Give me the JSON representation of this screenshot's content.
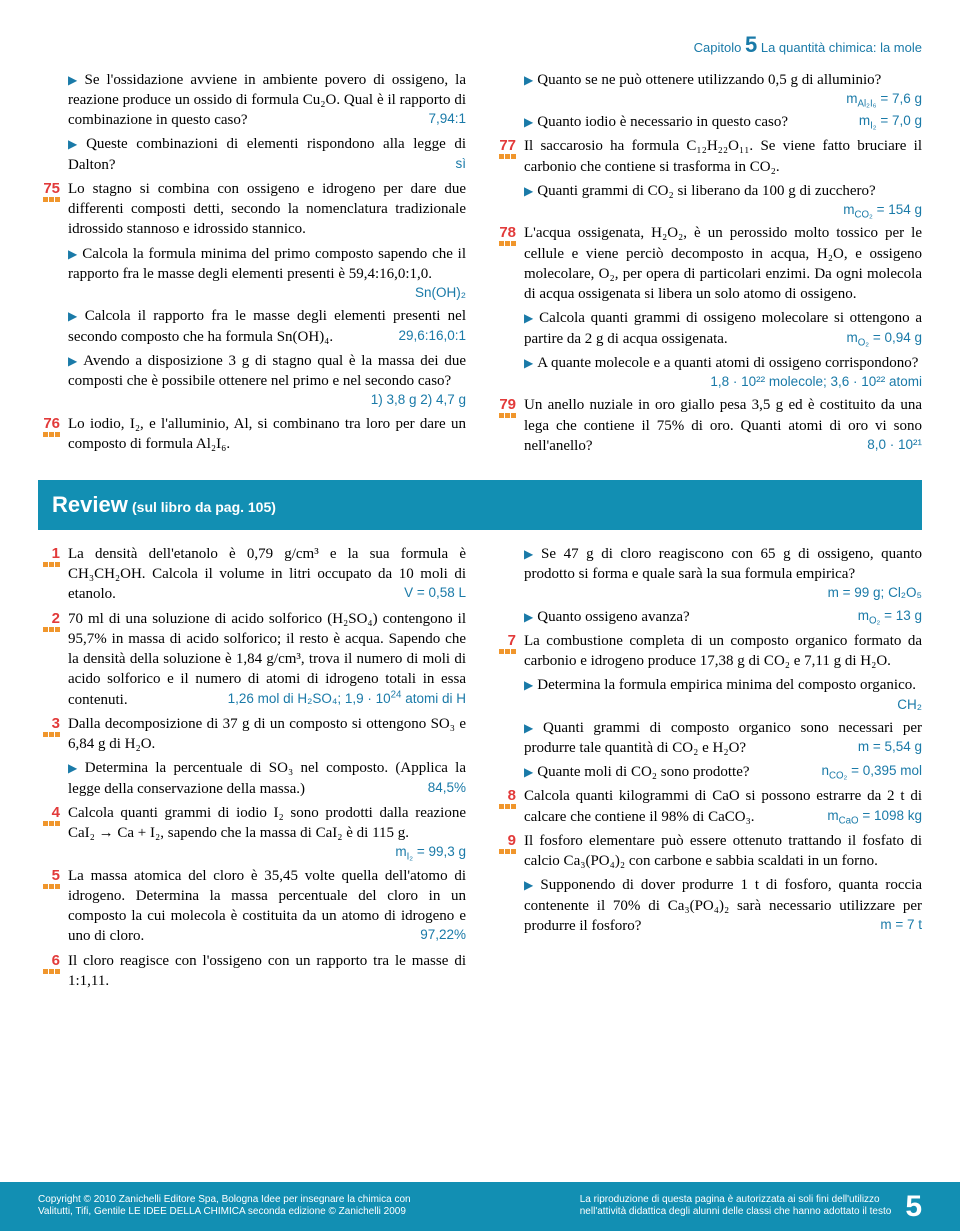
{
  "colors": {
    "accent_blue": "#1a7aa8",
    "accent_red": "#e23a3a",
    "box_blue": "#128fb3",
    "dot_orange": "#f0962c"
  },
  "header": {
    "text_pre": "Capitolo ",
    "num": "5",
    "text_post": " La quantità chimica: la mole"
  },
  "top_left": [
    {
      "type": "sub",
      "text": "Se l'ossidazione avviene in ambiente povero di ossigeno, la reazione produce un ossido di formula Cu₂O. Qual è il rapporto di combinazione in questo caso?",
      "ans": "7,94:1"
    },
    {
      "type": "sub",
      "text": "Queste combinazioni di elementi rispondono alla legge di Dalton?",
      "ans": "sì"
    },
    {
      "type": "prob",
      "num": "75",
      "text": "Lo stagno si combina con ossigeno e idrogeno per dare due differenti composti detti, secondo la nomenclatura tradizionale idrossido stannoso e idrossido stannico."
    },
    {
      "type": "sub",
      "text": "Calcola la formula minima del primo composto sapendo che il rapporto fra le masse degli elementi presenti è 59,4:16,0:1,0.",
      "ans": "Sn(OH)₂"
    },
    {
      "type": "sub",
      "text": "Calcola il rapporto fra le masse degli elementi presenti nel secondo composto che ha formula Sn(OH)₄.",
      "ans": "29,6:16,0:1"
    },
    {
      "type": "sub",
      "text": "Avendo a disposizione 3 g di stagno qual è la massa dei due composti che è possibile ottenere nel primo e nel secondo caso?",
      "ans": "1) 3,8 g 2) 4,7 g"
    },
    {
      "type": "prob",
      "num": "76",
      "text": "Lo iodio, I₂, e l'alluminio, Al, si combinano tra loro per dare un composto di formula Al₂I₆."
    }
  ],
  "top_right": [
    {
      "type": "sub",
      "text": "Quanto se ne può ottenere utilizzando 0,5 g di alluminio?",
      "ans_html": "m<sub>Al₂I₆</sub> = 7,6 g"
    },
    {
      "type": "sub",
      "text": "Quanto iodio è necessario in questo caso?",
      "ans_html": "m<sub>I₂</sub> = 7,0 g"
    },
    {
      "type": "prob",
      "num": "77",
      "text": "Il saccarosio ha formula C₁₂H₂₂O₁₁. Se viene fatto bruciare il carbonio che contiene si trasforma in CO₂."
    },
    {
      "type": "sub",
      "text": "Quanti grammi di CO₂ si liberano da 100 g di zucchero?",
      "ans_html": "m<sub>CO₂</sub> = 154 g"
    },
    {
      "type": "prob",
      "num": "78",
      "text": "L'acqua ossigenata, H₂O₂, è un perossido molto tossico per le cellule e viene perciò decomposto in acqua, H₂O, e ossigeno molecolare, O₂, per opera di particolari enzimi. Da ogni molecola di acqua ossigenata si libera un solo atomo di ossigeno."
    },
    {
      "type": "sub",
      "text": "Calcola quanti grammi di ossigeno molecolare si ottengono a partire da 2 g di acqua ossigenata.",
      "ans_html": "m<sub>O₂</sub> = 0,94 g"
    },
    {
      "type": "sub",
      "text": "A quante molecole e a quanti atomi di ossigeno corrispondono?",
      "ans": "1,8 · 10²² molecole; 3,6 · 10²² atomi"
    },
    {
      "type": "prob",
      "num": "79",
      "text": "Un anello nuziale in oro giallo pesa 3,5 g ed è costituito da una lega che contiene il 75% di oro. Quanti atomi di oro vi sono nell'anello?",
      "ans": "8,0 · 10²¹"
    }
  ],
  "review": {
    "title": "Review",
    "subtitle": "(sul libro da pag. 105)"
  },
  "rev_left": [
    {
      "type": "prob",
      "num": "1",
      "text": "La densità dell'etanolo è 0,79 g/cm³ e la sua formula è CH₃CH₂OH. Calcola il volume in litri occupato da 10 moli di etanolo.",
      "ans": "V = 0,58 L"
    },
    {
      "type": "prob",
      "num": "2",
      "text": "70 ml di una soluzione di acido solforico (H₂SO₄) contengono il 95,7% in massa di acido solforico; il resto è acqua. Sapendo che la densità della soluzione è 1,84 g/cm³, trova il numero di moli di acido solforico e il numero di atomi di idrogeno totali in essa contenuti.",
      "ans_html": "1,26 mol di H₂SO₄; 1,9 · 10<sup>24</sup> atomi di H"
    },
    {
      "type": "prob",
      "num": "3",
      "text": "Dalla decomposizione di 37 g di un composto si ottengono SO₃ e 6,84 g di H₂O."
    },
    {
      "type": "sub",
      "text": "Determina la percentuale di SO₃ nel composto. (Applica la legge della conservazione della massa.)",
      "ans": "84,5%"
    },
    {
      "type": "prob",
      "num": "4",
      "text": "Calcola quanti grammi di iodio I₂ sono prodotti dalla reazione CaI₂ → Ca + I₂, sapendo che la massa di CaI₂ è di 115 g.",
      "ans_html": "m<sub>I₂</sub> = 99,3 g"
    },
    {
      "type": "prob",
      "num": "5",
      "text": "La massa atomica del cloro è 35,45 volte quella dell'atomo di idrogeno. Determina la massa percentuale del cloro in un composto la cui molecola è costituita da un atomo di idrogeno e uno di cloro.",
      "ans": "97,22%"
    },
    {
      "type": "prob",
      "num": "6",
      "text": "Il cloro reagisce con l'ossigeno con un rapporto tra le masse di 1:1,11."
    }
  ],
  "rev_right": [
    {
      "type": "sub",
      "text": "Se 47 g di cloro reagiscono con 65 g di ossigeno, quanto prodotto si forma e quale sarà la sua formula empirica?",
      "ans_html": "m = 99 g; Cl₂O₅"
    },
    {
      "type": "sub",
      "text": "Quanto ossigeno avanza?",
      "ans_html": "m<sub>O₂</sub> = 13 g"
    },
    {
      "type": "prob",
      "num": "7",
      "text": "La combustione completa di un composto organico formato da carbonio e idrogeno produce 17,38 g di CO₂ e 7,11 g di H₂O."
    },
    {
      "type": "sub",
      "text": "Determina la formula empirica minima del composto organico.",
      "ans_html": "CH₂"
    },
    {
      "type": "sub",
      "text": "Quanti grammi di composto organico sono necessari per produrre tale quantità di CO₂ e H₂O?",
      "ans": "m = 5,54 g"
    },
    {
      "type": "sub",
      "text": "Quante moli di CO₂ sono prodotte?",
      "ans_html": "n<sub>CO₂</sub> = 0,395 mol"
    },
    {
      "type": "prob",
      "num": "8",
      "text": "Calcola quanti kilogrammi di CaO si possono estrarre da 2 t di calcare che contiene il 98% di CaCO₃.",
      "ans_html": "m<sub>CaO</sub> = 1098 kg"
    },
    {
      "type": "prob",
      "num": "9",
      "text": "Il fosforo elementare può essere ottenuto trattando il fosfato di calcio Ca₃(PO₄)₂ con carbone e sabbia scaldati in un forno."
    },
    {
      "type": "sub",
      "text": "Supponendo di dover produrre 1 t di fosforo, quanta roccia contenente il 70% di Ca₃(PO₄)₂ sarà necessario utilizzare per produrre il fosforo?",
      "ans": "m = 7 t"
    }
  ],
  "footer": {
    "left1": "Copyright © 2010 Zanichelli Editore Spa, Bologna Idee per insegnare la chimica con",
    "left2": "Valitutti, Tifi, Gentile LE IDEE DELLA CHIMICA seconda edizione © Zanichelli 2009",
    "right1": "La riproduzione di questa pagina è autorizzata ai soli fini dell'utilizzo",
    "right2": "nell'attività didattica degli alunni delle classi che hanno adottato il testo",
    "page": "5"
  }
}
